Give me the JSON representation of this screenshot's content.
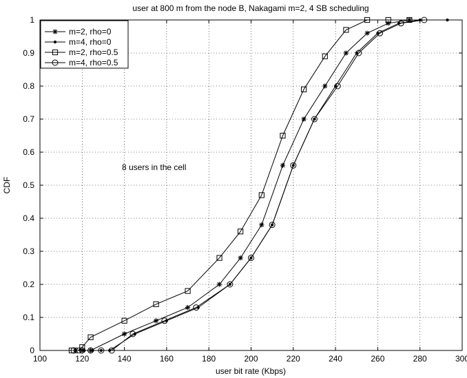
{
  "chart_data": {
    "type": "line",
    "title": "user at 800 m from the node B, Nakagami m=2, 4   SB scheduling",
    "xlabel": "user bit rate (Kbps)",
    "ylabel": "CDF",
    "xlim": [
      100,
      300
    ],
    "ylim": [
      0,
      1
    ],
    "xticks": [
      100,
      120,
      140,
      160,
      180,
      200,
      220,
      240,
      260,
      280,
      300
    ],
    "yticks": [
      0,
      0.1,
      0.2,
      0.3,
      0.4,
      0.5,
      0.6,
      0.7,
      0.8,
      0.9,
      1
    ],
    "xtick_labels": [
      "100",
      "120",
      "140",
      "160",
      "180",
      "200",
      "220",
      "240",
      "260",
      "280",
      "300"
    ],
    "ytick_labels": [
      "0",
      "0.1",
      "0.2",
      "0.3",
      "0.4",
      "0.5",
      "0.6",
      "0.7",
      "0.8",
      "0.9",
      "1"
    ],
    "grid": "dotted",
    "legend_position": "top-left",
    "annotation": "8 users in the cell",
    "series": [
      {
        "name": "m=2, rho=0",
        "marker": "star",
        "points": [
          [
            117,
            0
          ],
          [
            120,
            0
          ],
          [
            124,
            0
          ],
          [
            140,
            0.05
          ],
          [
            155,
            0.09
          ],
          [
            170,
            0.13
          ],
          [
            185,
            0.2
          ],
          [
            195,
            0.28
          ],
          [
            205,
            0.38
          ],
          [
            215,
            0.56
          ],
          [
            225,
            0.7
          ],
          [
            235,
            0.8
          ],
          [
            245,
            0.9
          ],
          [
            255,
            0.96
          ],
          [
            265,
            0.99
          ],
          [
            275,
            1
          ]
        ]
      },
      {
        "name": "m=4, rho=0",
        "marker": "dot",
        "points": [
          [
            121,
            0
          ],
          [
            125,
            0
          ],
          [
            129,
            0
          ],
          [
            133,
            0
          ],
          [
            145,
            0.05
          ],
          [
            160,
            0.09
          ],
          [
            175,
            0.13
          ],
          [
            190,
            0.2
          ],
          [
            200,
            0.28
          ],
          [
            210,
            0.38
          ],
          [
            220,
            0.56
          ],
          [
            230,
            0.7
          ],
          [
            240,
            0.8
          ],
          [
            250,
            0.9
          ],
          [
            260,
            0.96
          ],
          [
            270,
            0.99
          ],
          [
            280,
            1
          ],
          [
            293,
            1
          ]
        ]
      },
      {
        "name": "m=2, rho=0.5",
        "marker": "square",
        "points": [
          [
            115,
            0
          ],
          [
            118,
            0
          ],
          [
            120,
            0.01
          ],
          [
            124,
            0.04
          ],
          [
            140,
            0.09
          ],
          [
            155,
            0.14
          ],
          [
            170,
            0.18
          ],
          [
            185,
            0.28
          ],
          [
            195,
            0.36
          ],
          [
            205,
            0.47
          ],
          [
            215,
            0.65
          ],
          [
            225,
            0.79
          ],
          [
            235,
            0.89
          ],
          [
            245,
            0.97
          ],
          [
            255,
            1
          ],
          [
            265,
            1
          ],
          [
            275,
            1
          ]
        ]
      },
      {
        "name": "m=4, rho=0.5",
        "marker": "circle",
        "points": [
          [
            116,
            0
          ],
          [
            120,
            0
          ],
          [
            124,
            0
          ],
          [
            129,
            0
          ],
          [
            134,
            0
          ],
          [
            144,
            0.05
          ],
          [
            159,
            0.09
          ],
          [
            174,
            0.13
          ],
          [
            190,
            0.2
          ],
          [
            200,
            0.28
          ],
          [
            210,
            0.38
          ],
          [
            220,
            0.56
          ],
          [
            230,
            0.7
          ],
          [
            241,
            0.8
          ],
          [
            251,
            0.9
          ],
          [
            261,
            0.96
          ],
          [
            271,
            0.99
          ],
          [
            282,
            1
          ]
        ]
      }
    ]
  }
}
